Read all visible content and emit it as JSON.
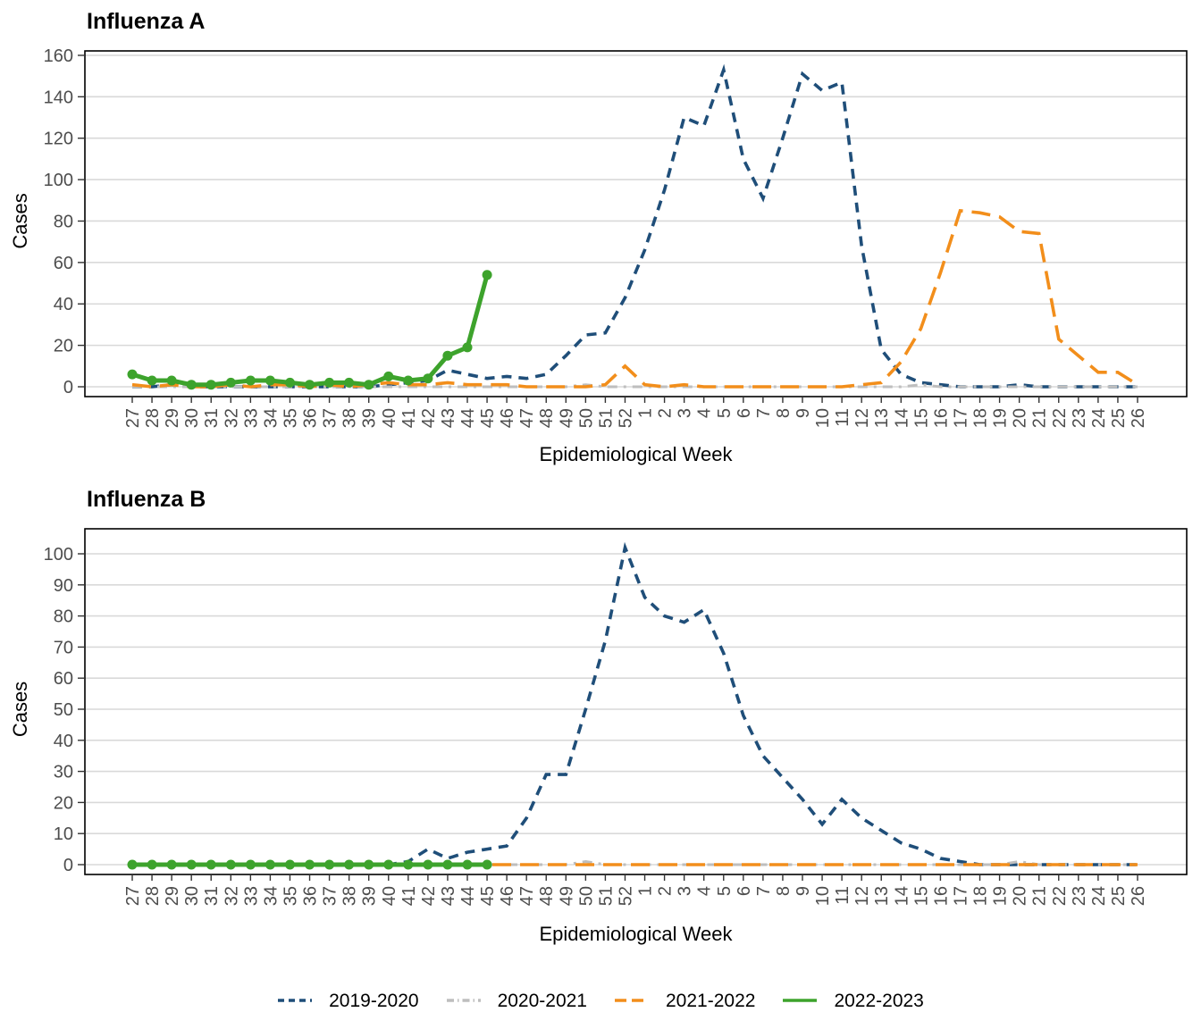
{
  "layout_hints": {
    "legend_position": "bottom",
    "grid": "horizontal-only",
    "panel_border": true,
    "background": "#ffffff",
    "tick_text_color": "#4d4d4d",
    "grid_color": "#d9d9d9"
  },
  "legend": {
    "items": [
      "2019-2020",
      "2020-2021",
      "2021-2022",
      "2022-2023"
    ]
  },
  "chart_data": [
    {
      "type": "line",
      "title": "Influenza A",
      "xlabel": "Epidemiological Week",
      "ylabel": "Cases",
      "ylim": [
        0,
        160
      ],
      "yticks": [
        0,
        20,
        40,
        60,
        80,
        100,
        120,
        140,
        160
      ],
      "categories": [
        "27",
        "28",
        "29",
        "30",
        "31",
        "32",
        "33",
        "34",
        "35",
        "36",
        "37",
        "38",
        "39",
        "40",
        "41",
        "42",
        "43",
        "44",
        "45",
        "46",
        "47",
        "48",
        "49",
        "50",
        "51",
        "52",
        "1",
        "2",
        "3",
        "4",
        "5",
        "6",
        "7",
        "8",
        "9",
        "10",
        "11",
        "12",
        "13",
        "14",
        "15",
        "16",
        "17",
        "18",
        "19",
        "20",
        "21",
        "22",
        "23",
        "24",
        "25",
        "26"
      ],
      "series": [
        {
          "name": "2019-2020",
          "color": "#1F4E79",
          "linetype": "dashed",
          "width": 3.6,
          "marker": false,
          "values": [
            0,
            0,
            1,
            0,
            0,
            0,
            0,
            0,
            0,
            0,
            0,
            0,
            0,
            1,
            2,
            3,
            8,
            6,
            4,
            5,
            4,
            6,
            15,
            25,
            26,
            43,
            66,
            95,
            130,
            126,
            153,
            110,
            91,
            120,
            151,
            143,
            147,
            68,
            18,
            6,
            2,
            1,
            0,
            0,
            0,
            1,
            0,
            0,
            0,
            0,
            0,
            0
          ]
        },
        {
          "name": "2020-2021",
          "color": "#BEBEBE",
          "linetype": "dashdot",
          "width": 3,
          "marker": false,
          "values": [
            0,
            0,
            0,
            0,
            0,
            0,
            0,
            0,
            0,
            0,
            0,
            0,
            0,
            0,
            0,
            0,
            0,
            0,
            0,
            0,
            0,
            0,
            0,
            1,
            0,
            0,
            0,
            0,
            0,
            0,
            0,
            0,
            0,
            0,
            0,
            0,
            0,
            0,
            0,
            0,
            1,
            0,
            0,
            0,
            0,
            0,
            0,
            0,
            0,
            0,
            0,
            0
          ]
        },
        {
          "name": "2021-2022",
          "color": "#F28E1B",
          "linetype": "longdash",
          "width": 3.6,
          "marker": false,
          "values": [
            1,
            0,
            1,
            0,
            0,
            1,
            0,
            1,
            1,
            0,
            1,
            0,
            1,
            2,
            1,
            1,
            2,
            1,
            1,
            1,
            0,
            0,
            0,
            0,
            1,
            10,
            1,
            0,
            1,
            0,
            0,
            0,
            0,
            0,
            0,
            0,
            0,
            1,
            2,
            12,
            28,
            55,
            85,
            84,
            82,
            75,
            74,
            23,
            15,
            7,
            7,
            1
          ]
        },
        {
          "name": "2022-2023",
          "color": "#3DA32C",
          "linetype": "solid",
          "width": 5,
          "marker": true,
          "values": [
            6,
            3,
            3,
            1,
            1,
            2,
            3,
            3,
            2,
            1,
            2,
            2,
            1,
            5,
            3,
            4,
            15,
            19,
            54,
            null,
            null,
            null,
            null,
            null,
            null,
            null,
            null,
            null,
            null,
            null,
            null,
            null,
            null,
            null,
            null,
            null,
            null,
            null,
            null,
            null,
            null,
            null,
            null,
            null,
            null,
            null,
            null,
            null,
            null,
            null,
            null,
            null
          ]
        }
      ]
    },
    {
      "type": "line",
      "title": "Influenza B",
      "xlabel": "Epidemiological Week",
      "ylabel": "Cases",
      "ylim": [
        0,
        100
      ],
      "yticks": [
        0,
        10,
        20,
        30,
        40,
        50,
        60,
        70,
        80,
        90,
        100
      ],
      "categories": [
        "27",
        "28",
        "29",
        "30",
        "31",
        "32",
        "33",
        "34",
        "35",
        "36",
        "37",
        "38",
        "39",
        "40",
        "41",
        "42",
        "43",
        "44",
        "45",
        "46",
        "47",
        "48",
        "49",
        "50",
        "51",
        "52",
        "1",
        "2",
        "3",
        "4",
        "5",
        "6",
        "7",
        "8",
        "9",
        "10",
        "11",
        "12",
        "13",
        "14",
        "15",
        "16",
        "17",
        "18",
        "19",
        "20",
        "21",
        "22",
        "23",
        "24",
        "25",
        "26"
      ],
      "series": [
        {
          "name": "2019-2020",
          "color": "#1F4E79",
          "linetype": "dashed",
          "width": 3.6,
          "marker": false,
          "values": [
            0,
            0,
            0,
            0,
            0,
            0,
            0,
            0,
            0,
            0,
            0,
            0,
            0,
            0,
            1,
            5,
            2,
            4,
            5,
            6,
            15,
            29,
            29,
            50,
            72,
            102,
            86,
            80,
            78,
            82,
            68,
            48,
            35,
            28,
            21,
            13,
            21,
            15,
            11,
            7,
            5,
            2,
            1,
            0,
            0,
            0,
            0,
            0,
            0,
            0,
            0,
            0
          ]
        },
        {
          "name": "2020-2021",
          "color": "#BEBEBE",
          "linetype": "dashdot",
          "width": 3,
          "marker": false,
          "values": [
            0,
            0,
            0,
            0,
            0,
            0,
            0,
            0,
            0,
            0,
            0,
            0,
            0,
            0,
            0,
            0,
            0,
            0,
            0,
            0,
            0,
            0,
            0,
            1,
            0,
            0,
            0,
            0,
            0,
            0,
            0,
            0,
            0,
            0,
            0,
            0,
            0,
            0,
            0,
            0,
            0,
            0,
            0,
            0,
            0,
            1,
            0,
            0,
            0,
            0,
            0,
            0
          ]
        },
        {
          "name": "2021-2022",
          "color": "#F28E1B",
          "linetype": "longdash",
          "width": 3.6,
          "marker": false,
          "values": [
            0,
            0,
            0,
            0,
            0,
            0,
            0,
            0,
            0,
            0,
            0,
            0,
            0,
            0,
            0,
            0,
            0,
            0,
            0,
            0,
            0,
            0,
            0,
            0,
            0,
            0,
            0,
            0,
            0,
            0,
            0,
            0,
            0,
            0,
            0,
            0,
            0,
            0,
            0,
            0,
            0,
            0,
            0,
            0,
            0,
            0,
            0,
            0,
            0,
            0,
            0,
            0
          ]
        },
        {
          "name": "2022-2023",
          "color": "#3DA32C",
          "linetype": "solid",
          "width": 5,
          "marker": true,
          "values": [
            0,
            0,
            0,
            0,
            0,
            0,
            0,
            0,
            0,
            0,
            0,
            0,
            0,
            0,
            0,
            0,
            0,
            0,
            0,
            null,
            null,
            null,
            null,
            null,
            null,
            null,
            null,
            null,
            null,
            null,
            null,
            null,
            null,
            null,
            null,
            null,
            null,
            null,
            null,
            null,
            null,
            null,
            null,
            null,
            null,
            null,
            null,
            null,
            null,
            null,
            null,
            null
          ]
        }
      ]
    }
  ]
}
